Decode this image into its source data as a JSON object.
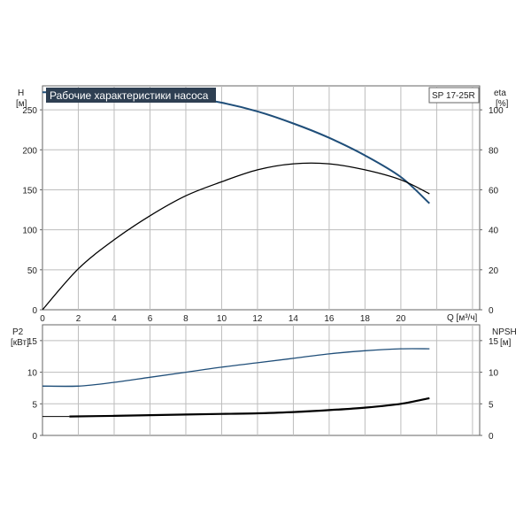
{
  "colors": {
    "blue_curve": "#1f4e79",
    "black_curve": "#000000",
    "grid": "#bdbdbd",
    "title_bg": "#2e3f52",
    "frame": "#666666"
  },
  "chart_data": [
    {
      "type": "line",
      "title": "Рабочие характеристики насоса",
      "model_label": "SP 17-25R",
      "xlabel": "Q [м³/ч]",
      "left_axis": {
        "name": "H",
        "unit": "[м]",
        "range": [
          0,
          280
        ],
        "ticks": [
          0,
          50,
          100,
          150,
          200,
          250
        ]
      },
      "right_axis": {
        "name": "eta",
        "unit": "[%]",
        "range": [
          0,
          112
        ],
        "ticks": [
          0,
          20,
          40,
          60,
          80,
          100
        ]
      },
      "x_range": [
        0,
        24.4
      ],
      "x_ticks": [
        0,
        2,
        4,
        6,
        8,
        10,
        12,
        14,
        16,
        18,
        20
      ],
      "grid": true,
      "series": [
        {
          "axis": "left",
          "color": "#1f4e79",
          "x": [
            0,
            2,
            4,
            6,
            8,
            10,
            12,
            14,
            16,
            18,
            20,
            21.6
          ],
          "y": [
            272,
            272,
            272,
            270,
            266,
            259,
            248,
            233,
            215,
            193,
            166,
            133
          ]
        },
        {
          "axis": "right",
          "color": "#000000",
          "x": [
            0,
            2,
            4,
            6,
            8,
            10,
            12,
            14,
            16,
            18,
            20,
            21.6
          ],
          "y": [
            0,
            20.5,
            35,
            47,
            57,
            64,
            70,
            73,
            73,
            70,
            65,
            58
          ]
        }
      ]
    },
    {
      "type": "line",
      "left_axis": {
        "name": "P2",
        "unit": "[кВт]",
        "range": [
          0,
          17.5
        ],
        "ticks": [
          0,
          5,
          10,
          15
        ]
      },
      "right_axis": {
        "name": "NPSH",
        "unit": "[м]",
        "range": [
          0,
          17.5
        ],
        "ticks": [
          0,
          5,
          10,
          15
        ]
      },
      "x_range": [
        0,
        24.4
      ],
      "grid": true,
      "series": [
        {
          "axis": "left",
          "color": "#1f4e79",
          "x": [
            0,
            2,
            4,
            6,
            8,
            10,
            12,
            14,
            16,
            18,
            20,
            21.6
          ],
          "y": [
            7.8,
            7.8,
            8.4,
            9.2,
            10.0,
            10.8,
            11.5,
            12.2,
            12.9,
            13.4,
            13.7,
            13.7
          ]
        },
        {
          "axis": "right",
          "color": "#000000",
          "x": [
            1.5,
            4,
            6,
            8,
            10,
            12,
            14,
            16,
            18,
            20,
            21.6
          ],
          "y": [
            3.0,
            3.1,
            3.2,
            3.3,
            3.4,
            3.5,
            3.7,
            4.0,
            4.4,
            5.0,
            5.9
          ]
        }
      ]
    }
  ]
}
